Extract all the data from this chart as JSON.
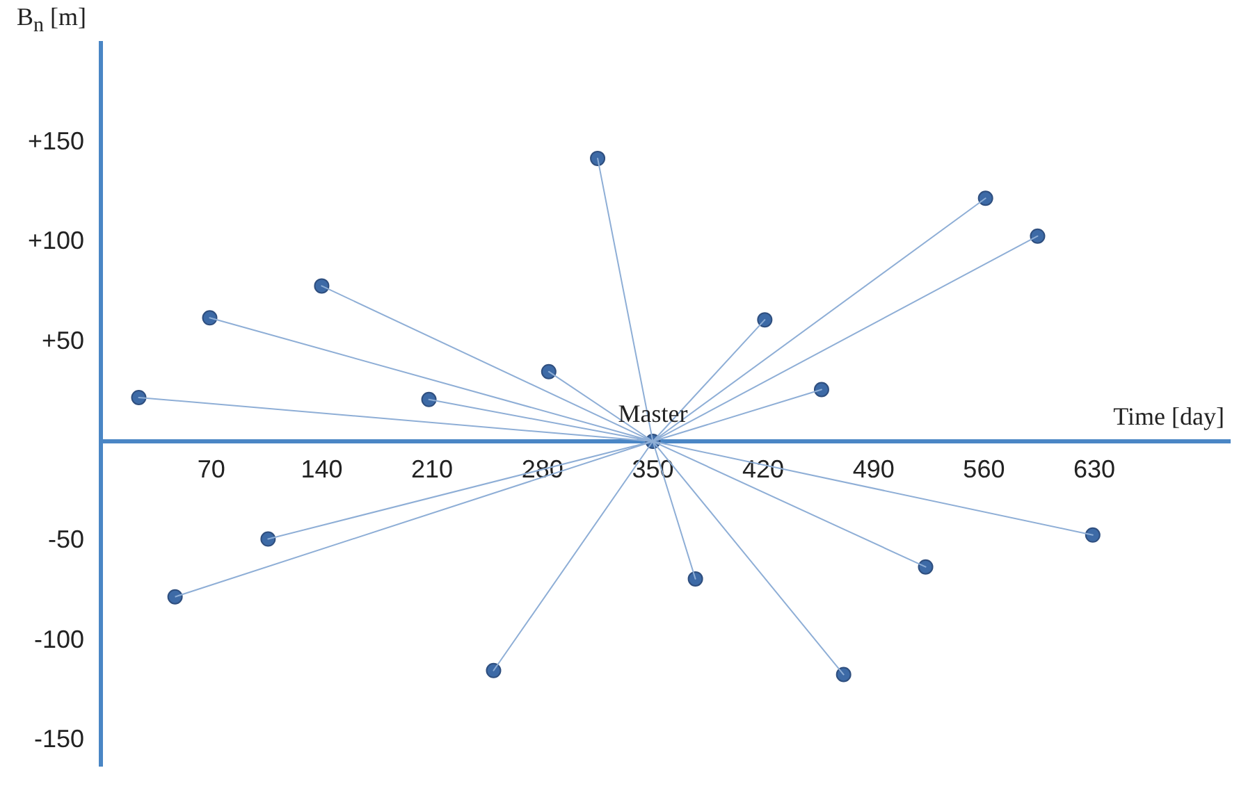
{
  "chart_data": {
    "type": "scatter",
    "xlabel": "Time [day]",
    "ylabel": "B$_{n}$ [m]",
    "xlim": [
      0,
      716
    ],
    "ylim": [
      -163,
      200
    ],
    "xticks": [
      70,
      140,
      210,
      280,
      350,
      420,
      490,
      560,
      630
    ],
    "yticks": [
      {
        "value": 150,
        "label": "+150"
      },
      {
        "value": 100,
        "label": "+100"
      },
      {
        "value": 50,
        "label": "+50"
      },
      {
        "value": -50,
        "label": "-50"
      },
      {
        "value": -100,
        "label": "-100"
      },
      {
        "value": -150,
        "label": "-150"
      }
    ],
    "grid": false,
    "legend": false,
    "annotations": [
      {
        "text": "Master",
        "x": 350,
        "y": 0
      }
    ],
    "series": [
      {
        "type": "line",
        "color": "#8eaed6",
        "marker": "none",
        "x": [
          350,
          24,
          350,
          69,
          350,
          140,
          350,
          208,
          350,
          284,
          350,
          315,
          350,
          421,
          350,
          457,
          350,
          561,
          350,
          594,
          350,
          629,
          350,
          523,
          350,
          471,
          350,
          377,
          350,
          249,
          350,
          106,
          350,
          47
        ],
        "values": [
          0,
          22,
          0,
          62,
          0,
          78,
          0,
          21,
          0,
          35,
          0,
          142,
          0,
          61,
          0,
          26,
          0,
          122,
          0,
          103,
          0,
          -47,
          0,
          -63,
          0,
          -117,
          0,
          -69,
          0,
          -115,
          0,
          -49,
          0,
          -78
        ]
      },
      {
        "type": "scatter",
        "color": "#3d6aa6",
        "marker": "circle",
        "x": [
          24,
          69,
          140,
          208,
          284,
          315,
          421,
          457,
          561,
          594,
          629,
          523,
          471,
          377,
          249,
          106,
          47,
          350
        ],
        "values": [
          22,
          62,
          78,
          21,
          35,
          142,
          61,
          26,
          122,
          103,
          -47,
          -63,
          -117,
          -69,
          -115,
          -49,
          -78,
          0
        ]
      }
    ]
  }
}
